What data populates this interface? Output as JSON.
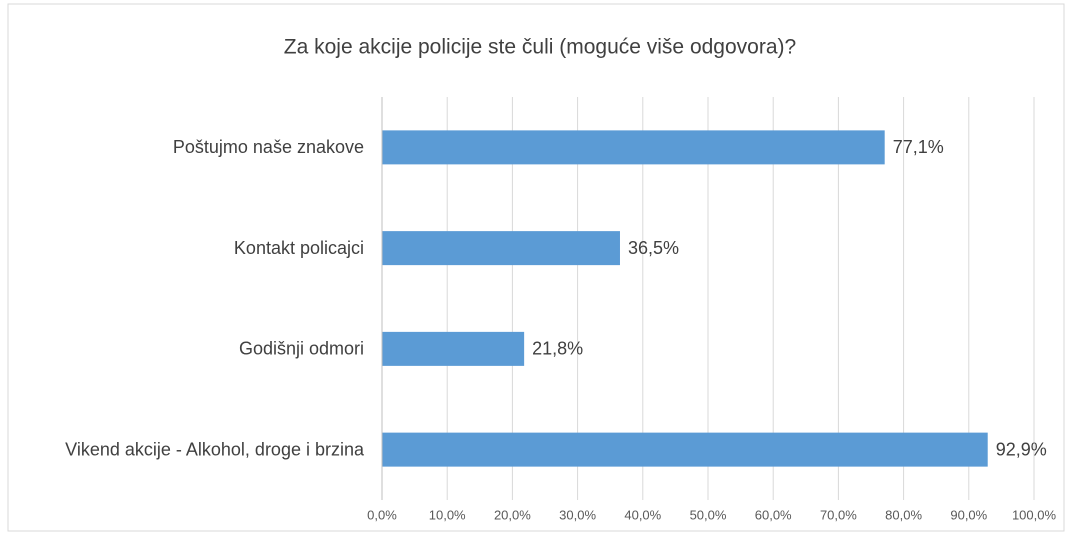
{
  "chart_data": {
    "type": "bar",
    "orientation": "horizontal",
    "title": "Za koje akcije policije ste čuli (moguće više odgovora)?",
    "categories": [
      "Poštujmo naše znakove",
      "Kontakt policajci",
      "Godišnji odmori",
      "Vikend akcije - Alkohol, droge i brzina"
    ],
    "values": [
      77.1,
      36.5,
      21.8,
      92.9
    ],
    "value_labels": [
      "77,1%",
      "36,5%",
      "21,8%",
      "92,9%"
    ],
    "color": "#5b9bd5",
    "xlim": [
      0,
      100
    ],
    "xticks": [
      {
        "value": 0,
        "label": "0,0%"
      },
      {
        "value": 10,
        "label": "10,0%"
      },
      {
        "value": 20,
        "label": "20,0%"
      },
      {
        "value": 30,
        "label": "30,0%"
      },
      {
        "value": 40,
        "label": "40,0%"
      },
      {
        "value": 50,
        "label": "50,0%"
      },
      {
        "value": 60,
        "label": "60,0%"
      },
      {
        "value": 70,
        "label": "70,0%"
      },
      {
        "value": 80,
        "label": "80,0%"
      },
      {
        "value": 90,
        "label": "90,0%"
      },
      {
        "value": 100,
        "label": "100,0%"
      }
    ],
    "grid": true
  }
}
